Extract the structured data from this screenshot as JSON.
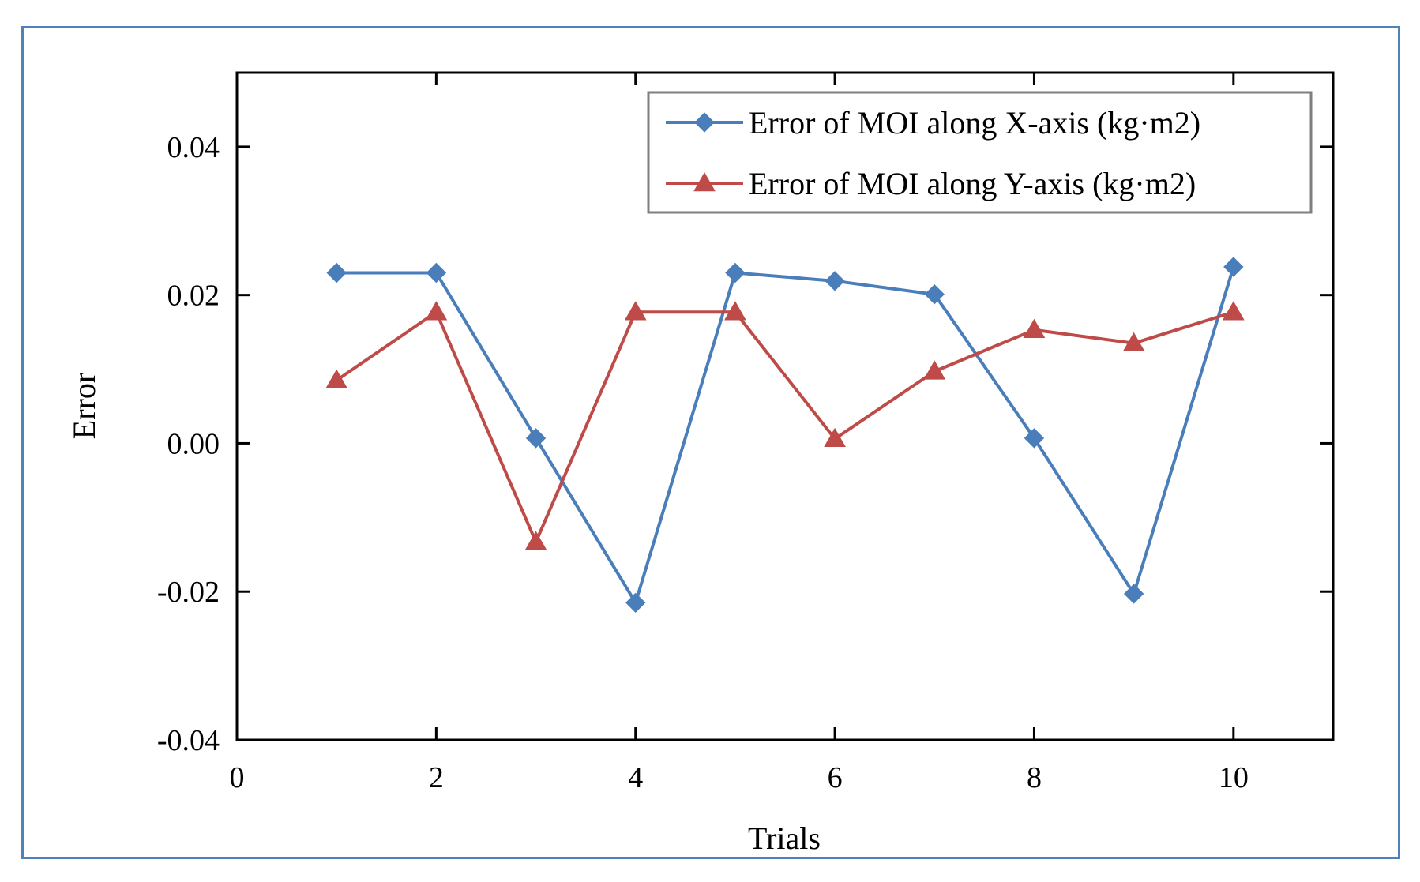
{
  "chart_data": {
    "type": "line",
    "title": "",
    "xlabel": "Trials",
    "ylabel": "Error",
    "xlim": [
      0,
      11
    ],
    "ylim": [
      -0.04,
      0.05
    ],
    "xticks": [
      0,
      2,
      4,
      6,
      8,
      10
    ],
    "xtick_labels": [
      "0",
      "2",
      "4",
      "6",
      "8",
      "10"
    ],
    "yticks": [
      -0.04,
      -0.02,
      0.0,
      0.02,
      0.04
    ],
    "ytick_labels": [
      "-0.04",
      "-0.02",
      "0.00",
      "0.02",
      "0.04"
    ],
    "grid": false,
    "legend_position": "top-right",
    "x": [
      1,
      2,
      3,
      4,
      5,
      6,
      7,
      8,
      9,
      10
    ],
    "series": [
      {
        "name": "Error of MOI along X-axis (kg·m2)",
        "marker": "diamond",
        "color": "#4a7ebb",
        "values": [
          0.023,
          0.023,
          0.0007,
          -0.0215,
          0.023,
          0.0219,
          0.0201,
          0.0007,
          -0.0203,
          0.0238
        ]
      },
      {
        "name": "Error of MOI along Y-axis (kg·m2)",
        "marker": "triangle",
        "color": "#be4b48",
        "values": [
          0.0085,
          0.0177,
          -0.0133,
          0.0177,
          0.0177,
          0.0006,
          0.0097,
          0.0153,
          0.0135,
          0.0177
        ]
      }
    ]
  },
  "colors": {
    "frame_border": "#4f81bd",
    "axis": "#000000",
    "legend_border": "#7f7f7f"
  }
}
